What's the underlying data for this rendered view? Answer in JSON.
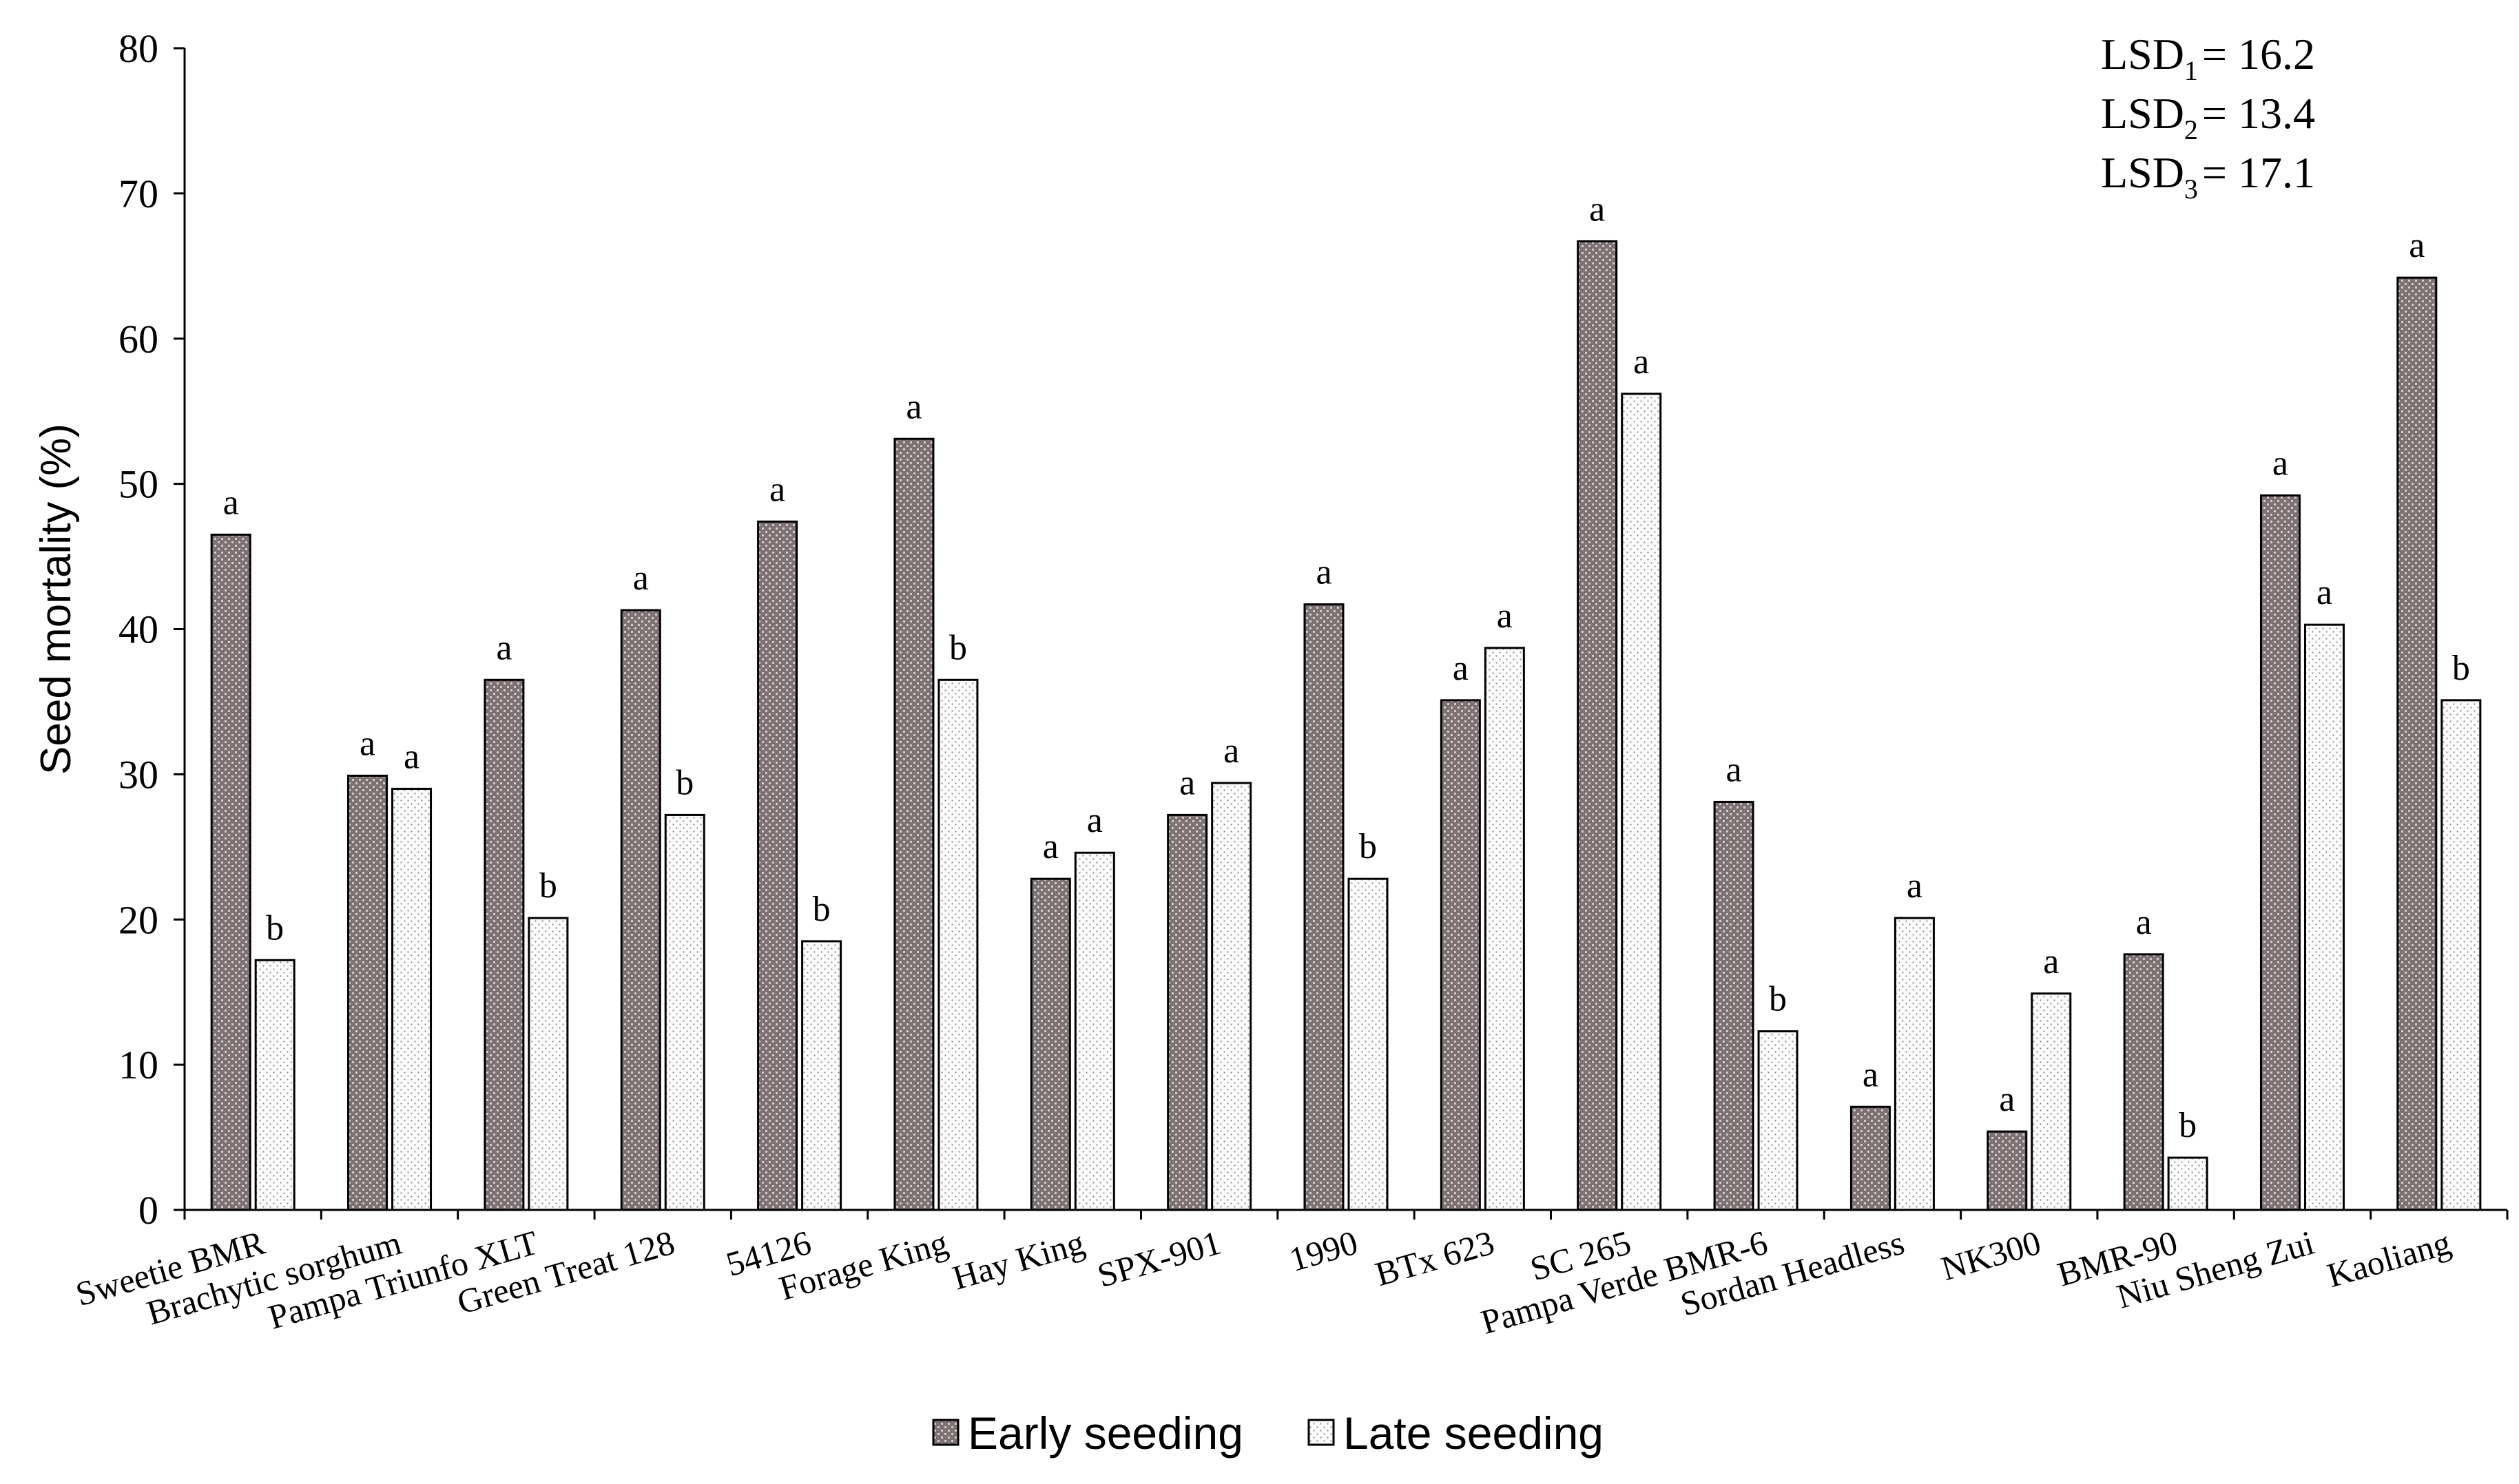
{
  "chart_data": {
    "type": "bar",
    "title": "",
    "xlabel": "",
    "ylabel": "Seed mortality (%)",
    "ylim": [
      0,
      80
    ],
    "yticks": [
      0,
      10,
      20,
      30,
      40,
      50,
      60,
      70,
      80
    ],
    "categories": [
      "Sweetie BMR",
      "Brachytic sorghum",
      "Pampa Triunfo XLT",
      "Green Treat 128",
      "54126",
      "Forage King",
      "Hay King",
      "SPX-901",
      "1990",
      "BTx 623",
      "SC 265",
      "Pampa Verde BMR-6",
      "Sordan Headless",
      "NK300",
      "BMR-90",
      "Niu Sheng Zui",
      "Kaoliang"
    ],
    "series": [
      {
        "name": "Early seeding",
        "color": "#7d7173",
        "values": [
          46.5,
          29.9,
          36.5,
          41.3,
          47.4,
          53.1,
          22.8,
          27.2,
          41.7,
          35.1,
          66.7,
          28.1,
          7.1,
          5.4,
          17.6,
          49.2,
          64.2
        ],
        "letters": [
          "a",
          "a",
          "a",
          "a",
          "a",
          "a",
          "a",
          "a",
          "a",
          "a",
          "a",
          "a",
          "a",
          "a",
          "a",
          "a",
          "a"
        ]
      },
      {
        "name": "Late seeding",
        "color": "#fafafa",
        "values": [
          17.2,
          29.0,
          20.1,
          27.2,
          18.5,
          36.5,
          24.6,
          29.4,
          22.8,
          38.7,
          56.2,
          12.3,
          20.1,
          14.9,
          3.6,
          40.3,
          35.1
        ],
        "letters": [
          "b",
          "a",
          "b",
          "b",
          "b",
          "b",
          "a",
          "a",
          "b",
          "a",
          "a",
          "b",
          "a",
          "a",
          "b",
          "a",
          "b"
        ]
      }
    ],
    "lsd": [
      {
        "label": "LSD",
        "sub": "1",
        "value": "= 16.2"
      },
      {
        "label": "LSD",
        "sub": "2",
        "value": "= 13.4"
      },
      {
        "label": "LSD",
        "sub": "3",
        "value": "= 17.1"
      }
    ],
    "legend_position": "bottom-center"
  }
}
